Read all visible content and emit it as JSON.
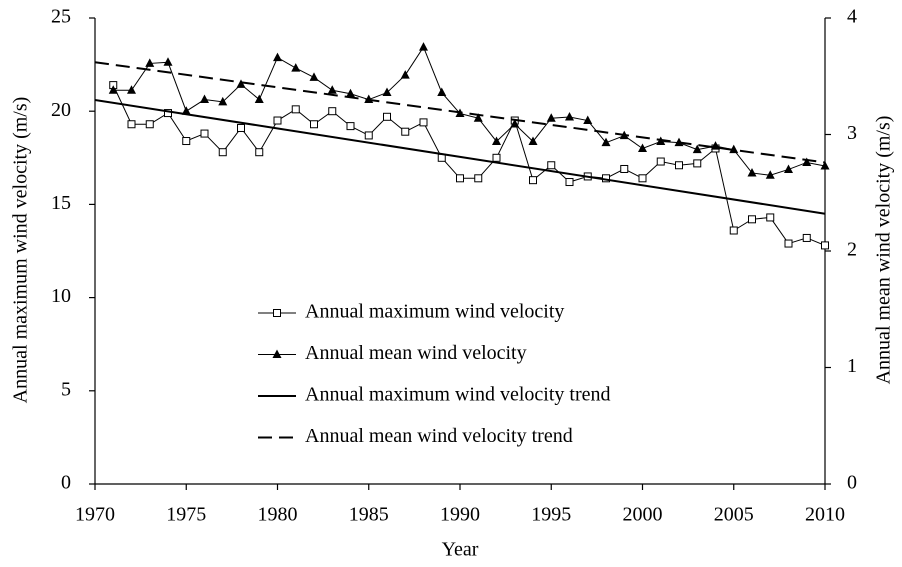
{
  "chart_data": {
    "type": "line",
    "xlabel": "Year",
    "ylabel": "Annual maximum wind velocity (m/s)",
    "y2label": "Annual mean wind velocity (m/s)",
    "x": [
      1971,
      1972,
      1973,
      1974,
      1975,
      1976,
      1977,
      1978,
      1979,
      1980,
      1981,
      1982,
      1983,
      1984,
      1985,
      1986,
      1987,
      1988,
      1989,
      1990,
      1991,
      1992,
      1993,
      1994,
      1995,
      1996,
      1997,
      1998,
      1999,
      2000,
      2001,
      2002,
      2003,
      2004,
      2005,
      2006,
      2007,
      2008,
      2009,
      2010
    ],
    "series": [
      {
        "name": "Annual maximum wind velocity",
        "color": "#000000",
        "marker": "square-open",
        "linestyle": "solid",
        "axis": "y",
        "values": [
          21.4,
          19.3,
          19.3,
          19.9,
          18.4,
          18.8,
          17.8,
          19.1,
          17.8,
          19.5,
          20.1,
          19.3,
          20.0,
          19.2,
          18.7,
          19.7,
          18.9,
          19.4,
          17.5,
          16.4,
          16.4,
          17.5,
          19.5,
          16.3,
          17.1,
          16.2,
          16.5,
          16.4,
          16.9,
          16.4,
          17.3,
          17.1,
          17.2,
          18.0,
          13.6,
          14.2,
          14.3,
          12.9,
          13.2,
          12.8
        ]
      },
      {
        "name": "Annual mean wind velocity",
        "color": "#000000",
        "marker": "triangle",
        "linestyle": "solid",
        "axis": "y2",
        "values": [
          3.38,
          3.38,
          3.61,
          3.62,
          3.2,
          3.3,
          3.28,
          3.43,
          3.3,
          3.66,
          3.57,
          3.49,
          3.38,
          3.35,
          3.3,
          3.36,
          3.51,
          3.75,
          3.36,
          3.18,
          3.14,
          2.94,
          3.09,
          2.94,
          3.14,
          3.15,
          3.12,
          2.93,
          2.99,
          2.88,
          2.94,
          2.93,
          2.87,
          2.9,
          2.87,
          2.67,
          2.65,
          2.7,
          2.76,
          2.73
        ]
      },
      {
        "name": "Annual maximum wind velocity trend",
        "color": "#000000",
        "marker": "none",
        "linestyle": "solid",
        "axis": "y",
        "x": [
          1970,
          2010
        ],
        "values": [
          20.6,
          14.5
        ]
      },
      {
        "name": "Annual mean wind velocity trend",
        "color": "#000000",
        "marker": "none",
        "linestyle": "dashed",
        "axis": "y2",
        "x": [
          1970,
          2010
        ],
        "values": [
          3.62,
          2.76
        ]
      }
    ],
    "xlim": [
      1970,
      2010
    ],
    "xticks": [
      1970,
      1975,
      1980,
      1985,
      1990,
      1995,
      2000,
      2005,
      2010
    ],
    "ylim": [
      0,
      25
    ],
    "yticks": [
      0,
      5,
      10,
      15,
      20,
      25
    ],
    "y2lim": [
      0,
      4
    ],
    "y2ticks": [
      0,
      1,
      2,
      3,
      4
    ],
    "grid": false,
    "legend": "lower center"
  }
}
